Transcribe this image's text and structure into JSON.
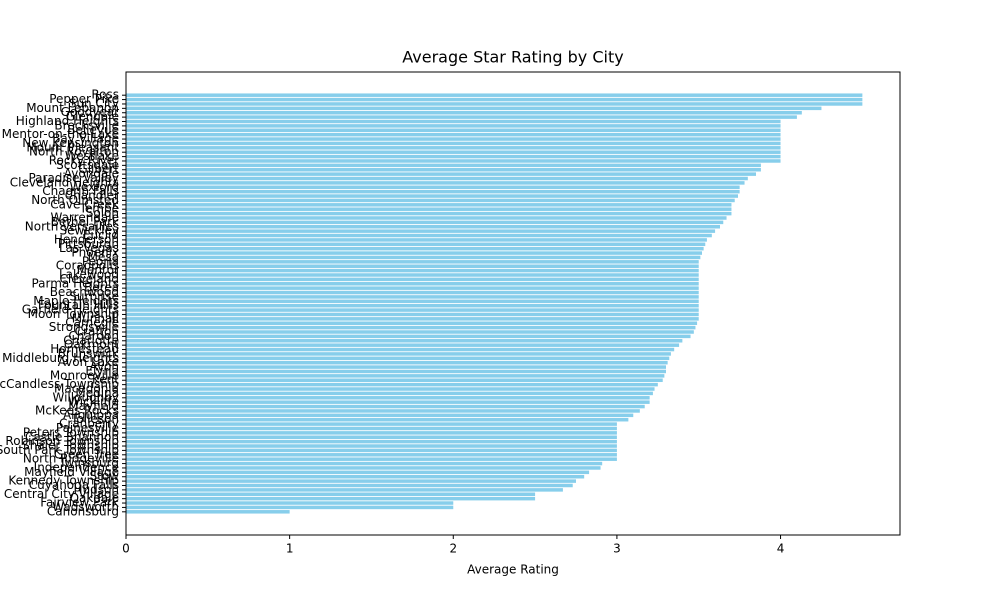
{
  "chart_data": {
    "type": "barh",
    "title": "Average Star Rating by City",
    "xlabel": "Average Rating",
    "color": "#87ceeb",
    "categories": [
      "Ross",
      "Pepper Pike",
      "Sun City",
      "Mount Lebanon",
      "Goodyear",
      "Glendale",
      "Highland Heights",
      "Brecksville",
      "Bellevue",
      "Mentor-on-the-Lake",
      "Bay Village",
      "New Kensington",
      "Mount Pleasant",
      "North Royalton",
      "Westlake",
      "Rocky River",
      "Scottsdale",
      "Gilbert",
      "Avondale",
      "Paradise Valley",
      "Cleveland Heights",
      "Wexford",
      "Chagrin Falls",
      "Chandler",
      "North Olmsted",
      "Cave Creek",
      "Tempe",
      "Solon",
      "Warrendale",
      "Bethel Park",
      "North Versailles",
      "Sewickley",
      "Euclid",
      "Henderson",
      "Pittsburgh",
      "Las Vegas",
      "Phoenix",
      "Mesa",
      "Peoria",
      "Coraopolis",
      "Mentor",
      "Lakewood",
      "Cleveland",
      "Parma Heights",
      "Berea",
      "Beachwood",
      "Surprise",
      "Maple Heights",
      "Fountain Hills",
      "Garfield Heights",
      "Moon Township",
      "Munhall",
      "Carnegie",
      "Strongsville",
      "Crafton",
      "Chardon",
      "Charlotte",
      "Oakmont",
      "Homestead",
      "Brunswick",
      "Middleburg Heights",
      "Avon Lake",
      "Avon",
      "Elyria",
      "Monroeville",
      "Kent",
      "McCandless Township",
      "Macedonia",
      "Medina",
      "Willoughby",
      "Wickliffe",
      "Mayfield",
      "McKees Rocks",
      "Aliquippa",
      "Tolleson",
      "Cranberry",
      "Painesville",
      "Peters Township",
      "Castle Shannon",
      "Robinson Township",
      "Shaler Township",
      "South Park Township",
      "Green Tree",
      "North Ridgeville",
      "Twinsburg",
      "Independence",
      "Mayfield Village",
      "Stow",
      "Kennedy Township",
      "Cuyahoga Falls",
      "Hudson",
      "Central City Village",
      "Oakdale",
      "Fairview Park",
      "Wadsworth",
      "Canonsburg"
    ],
    "values": [
      4.5,
      4.5,
      4.5,
      4.25,
      4.13,
      4.1,
      4.0,
      4.0,
      4.0,
      4.0,
      4.0,
      4.0,
      4.0,
      4.0,
      4.0,
      4.0,
      3.88,
      3.88,
      3.85,
      3.8,
      3.78,
      3.75,
      3.75,
      3.74,
      3.72,
      3.7,
      3.7,
      3.7,
      3.67,
      3.65,
      3.63,
      3.6,
      3.58,
      3.55,
      3.54,
      3.53,
      3.52,
      3.51,
      3.5,
      3.5,
      3.5,
      3.5,
      3.5,
      3.5,
      3.5,
      3.5,
      3.5,
      3.5,
      3.5,
      3.5,
      3.5,
      3.5,
      3.49,
      3.48,
      3.47,
      3.45,
      3.4,
      3.38,
      3.35,
      3.33,
      3.32,
      3.31,
      3.3,
      3.3,
      3.29,
      3.28,
      3.25,
      3.23,
      3.22,
      3.2,
      3.2,
      3.17,
      3.14,
      3.1,
      3.07,
      3.0,
      3.0,
      3.0,
      3.0,
      3.0,
      3.0,
      3.0,
      3.0,
      3.0,
      2.91,
      2.9,
      2.83,
      2.8,
      2.75,
      2.73,
      2.67,
      2.5,
      2.5,
      2.0,
      2.0,
      1.0
    ],
    "xlim": [
      0,
      4.73
    ],
    "xticks": [
      0,
      1,
      2,
      3,
      4
    ]
  }
}
